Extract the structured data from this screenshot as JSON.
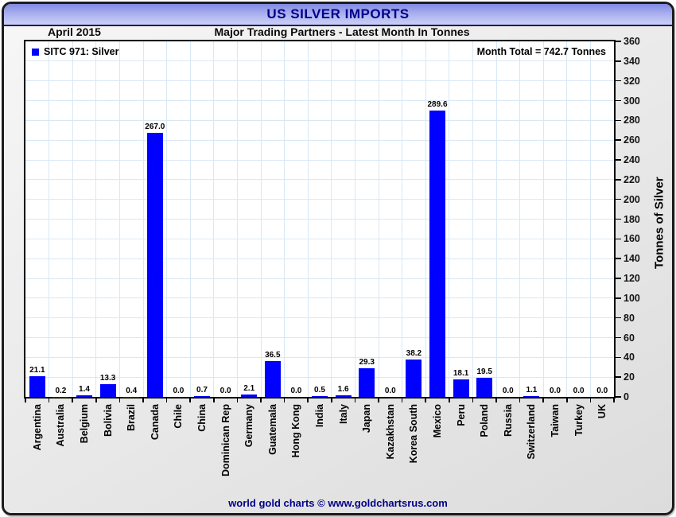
{
  "window": {
    "title": "US SILVER IMPORTS"
  },
  "header": {
    "period": "April 2015",
    "subtitle": "Major Trading Partners - Latest Month In Tonnes"
  },
  "plot": {
    "legend_label": "SITC 971: Silver",
    "month_total_label": "Month Total = 742.7 Tonnes"
  },
  "y_axis": {
    "title": "Tonnes of Silver"
  },
  "footer": {
    "credit": "world gold charts © www.goldchartsrus.com"
  },
  "colors": {
    "bar": "#0000ff",
    "grid": "#d9e8f5",
    "accent_text": "#00008b",
    "titlebar_top": "#8089e2",
    "titlebar_bottom": "#ccd0f6"
  },
  "chart_data": {
    "type": "bar",
    "title": "US SILVER IMPORTS",
    "period": "April 2015",
    "subtitle": "Major Trading Partners - Latest Month In Tonnes",
    "legend": "SITC 971: Silver",
    "month_total": 742.7,
    "ylabel": "Tonnes of Silver",
    "ylim": [
      0,
      360
    ],
    "ytick_step": 20,
    "grid": true,
    "legend_position": "top-left",
    "categories": [
      "Argentina",
      "Australia",
      "Belgium",
      "Bolivia",
      "Brazil",
      "Canada",
      "Chile",
      "China",
      "Dominican Rep",
      "Germany",
      "Guatemala",
      "Hong Kong",
      "India",
      "Italy",
      "Japan",
      "Kazakhstan",
      "Korea South",
      "Mexico",
      "Peru",
      "Poland",
      "Russia",
      "Switzerland",
      "Taiwan",
      "Turkey",
      "UK"
    ],
    "values": [
      21.1,
      0.2,
      1.4,
      13.3,
      0.4,
      267.0,
      0.0,
      0.7,
      0.0,
      2.1,
      36.5,
      0.0,
      0.5,
      1.6,
      29.3,
      0.0,
      38.2,
      289.6,
      18.1,
      19.5,
      0.0,
      1.1,
      0.0,
      0.0,
      0.0
    ]
  }
}
